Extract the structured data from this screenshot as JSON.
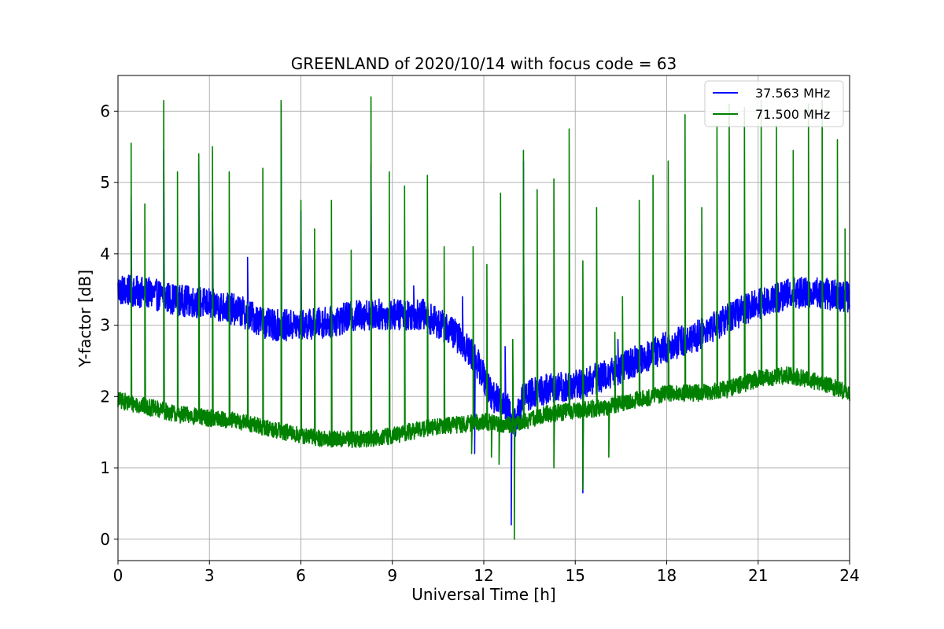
{
  "chart_data": {
    "type": "line",
    "title": "GREENLAND of 2020/10/14 with focus code = 63",
    "xlabel": "Universal Time [h]",
    "ylabel": "Y-factor [dB]",
    "xlim": [
      0,
      24
    ],
    "ylim": [
      -0.3,
      6.5
    ],
    "xticks": [
      0,
      3,
      6,
      9,
      12,
      15,
      18,
      21,
      24
    ],
    "yticks": [
      0,
      1,
      2,
      3,
      4,
      5,
      6
    ],
    "grid": true,
    "legend_position": "upper-right",
    "series": [
      {
        "name": "37.563 MHz",
        "color": "#0000ff",
        "noise_amplitude": 0.22,
        "baseline": [
          [
            0,
            3.5
          ],
          [
            1,
            3.45
          ],
          [
            2,
            3.35
          ],
          [
            3,
            3.3
          ],
          [
            4,
            3.2
          ],
          [
            5,
            3.0
          ],
          [
            6,
            3.0
          ],
          [
            7,
            3.05
          ],
          [
            8,
            3.15
          ],
          [
            9,
            3.15
          ],
          [
            10,
            3.15
          ],
          [
            11,
            2.9
          ],
          [
            11.7,
            2.55
          ],
          [
            12.3,
            2.0
          ],
          [
            12.8,
            1.85
          ],
          [
            13,
            1.6
          ],
          [
            13.3,
            2.0
          ],
          [
            14,
            2.1
          ],
          [
            15,
            2.15
          ],
          [
            16,
            2.3
          ],
          [
            17,
            2.5
          ],
          [
            18,
            2.7
          ],
          [
            19,
            2.85
          ],
          [
            20,
            3.1
          ],
          [
            21,
            3.3
          ],
          [
            22,
            3.45
          ],
          [
            23,
            3.45
          ],
          [
            24,
            3.4
          ]
        ],
        "spikes": [
          [
            0.43,
            4.8
          ],
          [
            1.5,
            5.45
          ],
          [
            2.65,
            5.3
          ],
          [
            3.1,
            4.6
          ],
          [
            4.25,
            3.95
          ],
          [
            5.35,
            6.1
          ],
          [
            6.0,
            4.6
          ],
          [
            8.3,
            5.25
          ],
          [
            9.7,
            3.55
          ],
          [
            11.3,
            3.4
          ],
          [
            12.7,
            2.7
          ],
          [
            13.3,
            5.3
          ],
          [
            15.25,
            0.65
          ],
          [
            16.4,
            2.8
          ]
        ],
        "dips": [
          [
            11.7,
            1.2
          ],
          [
            12.9,
            0.2
          ]
        ]
      },
      {
        "name": "71.500 MHz",
        "color": "#008000",
        "noise_amplitude": 0.12,
        "baseline": [
          [
            0,
            1.95
          ],
          [
            1,
            1.85
          ],
          [
            2,
            1.75
          ],
          [
            3,
            1.7
          ],
          [
            4,
            1.65
          ],
          [
            5,
            1.55
          ],
          [
            6,
            1.45
          ],
          [
            7,
            1.4
          ],
          [
            8,
            1.4
          ],
          [
            9,
            1.45
          ],
          [
            10,
            1.55
          ],
          [
            11,
            1.6
          ],
          [
            12,
            1.65
          ],
          [
            13,
            1.6
          ],
          [
            14,
            1.75
          ],
          [
            15,
            1.8
          ],
          [
            16,
            1.85
          ],
          [
            17,
            1.95
          ],
          [
            18,
            2.05
          ],
          [
            19,
            2.05
          ],
          [
            20,
            2.1
          ],
          [
            21,
            2.25
          ],
          [
            22,
            2.3
          ],
          [
            23,
            2.2
          ],
          [
            24,
            2.05
          ]
        ],
        "spikes": [
          [
            0.43,
            5.55
          ],
          [
            0.88,
            4.7
          ],
          [
            1.5,
            6.15
          ],
          [
            1.95,
            5.15
          ],
          [
            2.65,
            5.4
          ],
          [
            3.1,
            5.5
          ],
          [
            3.65,
            5.15
          ],
          [
            4.25,
            3.3
          ],
          [
            4.75,
            5.2
          ],
          [
            5.35,
            6.15
          ],
          [
            6.0,
            4.75
          ],
          [
            6.45,
            4.35
          ],
          [
            7.0,
            4.75
          ],
          [
            7.65,
            4.05
          ],
          [
            8.3,
            6.2
          ],
          [
            8.9,
            5.15
          ],
          [
            9.4,
            4.95
          ],
          [
            10.15,
            5.1
          ],
          [
            10.7,
            4.1
          ],
          [
            11.65,
            4.1
          ],
          [
            12.1,
            3.85
          ],
          [
            12.55,
            4.85
          ],
          [
            12.95,
            2.8
          ],
          [
            13.3,
            5.45
          ],
          [
            13.75,
            4.9
          ],
          [
            14.3,
            5.05
          ],
          [
            14.8,
            5.75
          ],
          [
            15.25,
            3.9
          ],
          [
            15.7,
            4.65
          ],
          [
            16.3,
            2.9
          ],
          [
            16.55,
            3.4
          ],
          [
            17.1,
            4.75
          ],
          [
            17.55,
            5.1
          ],
          [
            18.05,
            5.3
          ],
          [
            18.6,
            5.95
          ],
          [
            19.15,
            4.65
          ],
          [
            19.65,
            5.8
          ],
          [
            20.05,
            6.1
          ],
          [
            20.55,
            6.05
          ],
          [
            21.1,
            6.15
          ],
          [
            21.6,
            5.8
          ],
          [
            22.15,
            5.45
          ],
          [
            22.65,
            6.1
          ],
          [
            23.1,
            6.15
          ],
          [
            23.6,
            5.6
          ],
          [
            23.85,
            4.35
          ]
        ],
        "dips": [
          [
            11.6,
            1.2
          ],
          [
            12.25,
            1.15
          ],
          [
            12.5,
            1.05
          ],
          [
            13.0,
            0.0
          ],
          [
            14.3,
            1.0
          ],
          [
            15.25,
            0.7
          ],
          [
            16.1,
            1.15
          ]
        ]
      }
    ]
  }
}
